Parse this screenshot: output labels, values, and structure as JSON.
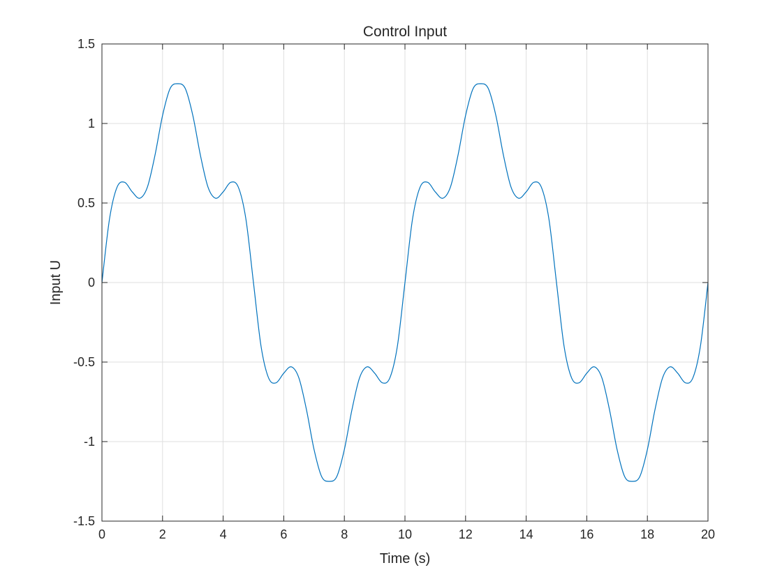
{
  "chart_data": {
    "type": "line",
    "title": "Control Input",
    "xlabel": "Time (s)",
    "ylabel": "Input U",
    "xlim": [
      0,
      20
    ],
    "ylim": [
      -1.5,
      1.5
    ],
    "xticks": [
      0,
      2,
      4,
      6,
      8,
      10,
      12,
      14,
      16,
      18,
      20
    ],
    "yticks": [
      -1.5,
      -1,
      -0.5,
      0,
      0.5,
      1,
      1.5
    ],
    "xtick_labels": [
      "0",
      "2",
      "4",
      "6",
      "8",
      "10",
      "12",
      "14",
      "16",
      "18",
      "20"
    ],
    "ytick_labels": [
      "-1.5",
      "-1",
      "-0.5",
      "0",
      "0.5",
      "1",
      "1.5"
    ],
    "grid": true,
    "series": [
      {
        "color": "#0072bd",
        "x": [
          0,
          0.25,
          0.5,
          0.75,
          1,
          1.25,
          1.5,
          1.75,
          2,
          2.25,
          2.5,
          2.75,
          3,
          3.25,
          3.5,
          3.75,
          4,
          4.25,
          4.5,
          4.75,
          5,
          5.25,
          5.5,
          5.75,
          6,
          6.25,
          6.5,
          6.75,
          7,
          7.25,
          7.5,
          7.75,
          8,
          8.25,
          8.5,
          8.75,
          9,
          9.25,
          9.5,
          9.75,
          10,
          10.25,
          10.5,
          10.75,
          11,
          11.25,
          11.5,
          11.75,
          12,
          12.25,
          12.5,
          12.75,
          13,
          13.25,
          13.5,
          13.75,
          14,
          14.25,
          14.5,
          14.75,
          15,
          15.25,
          15.5,
          15.75,
          16,
          16.25,
          16.5,
          16.75,
          17,
          17.25,
          17.5,
          17.75,
          18,
          18.25,
          18.5,
          18.75,
          19,
          19.25,
          19.5,
          19.75,
          20
        ],
        "y": [
          0,
          0.4,
          0.6,
          0.63,
          0.57,
          0.53,
          0.6,
          0.8,
          1.05,
          1.22,
          1.25,
          1.22,
          1.05,
          0.8,
          0.6,
          0.53,
          0.57,
          0.63,
          0.6,
          0.4,
          0,
          -0.4,
          -0.6,
          -0.63,
          -0.57,
          -0.53,
          -0.6,
          -0.8,
          -1.05,
          -1.22,
          -1.25,
          -1.22,
          -1.05,
          -0.8,
          -0.6,
          -0.53,
          -0.57,
          -0.63,
          -0.6,
          -0.4,
          0,
          0.4,
          0.6,
          0.63,
          0.57,
          0.53,
          0.6,
          0.8,
          1.05,
          1.22,
          1.25,
          1.22,
          1.05,
          0.8,
          0.6,
          0.53,
          0.57,
          0.63,
          0.6,
          0.4,
          0,
          -0.4,
          -0.6,
          -0.63,
          -0.57,
          -0.53,
          -0.6,
          -0.8,
          -1.05,
          -1.22,
          -1.25,
          -1.22,
          -1.05,
          -0.8,
          -0.6,
          -0.53,
          -0.57,
          -0.63,
          -0.6,
          -0.4,
          0
        ]
      }
    ]
  }
}
